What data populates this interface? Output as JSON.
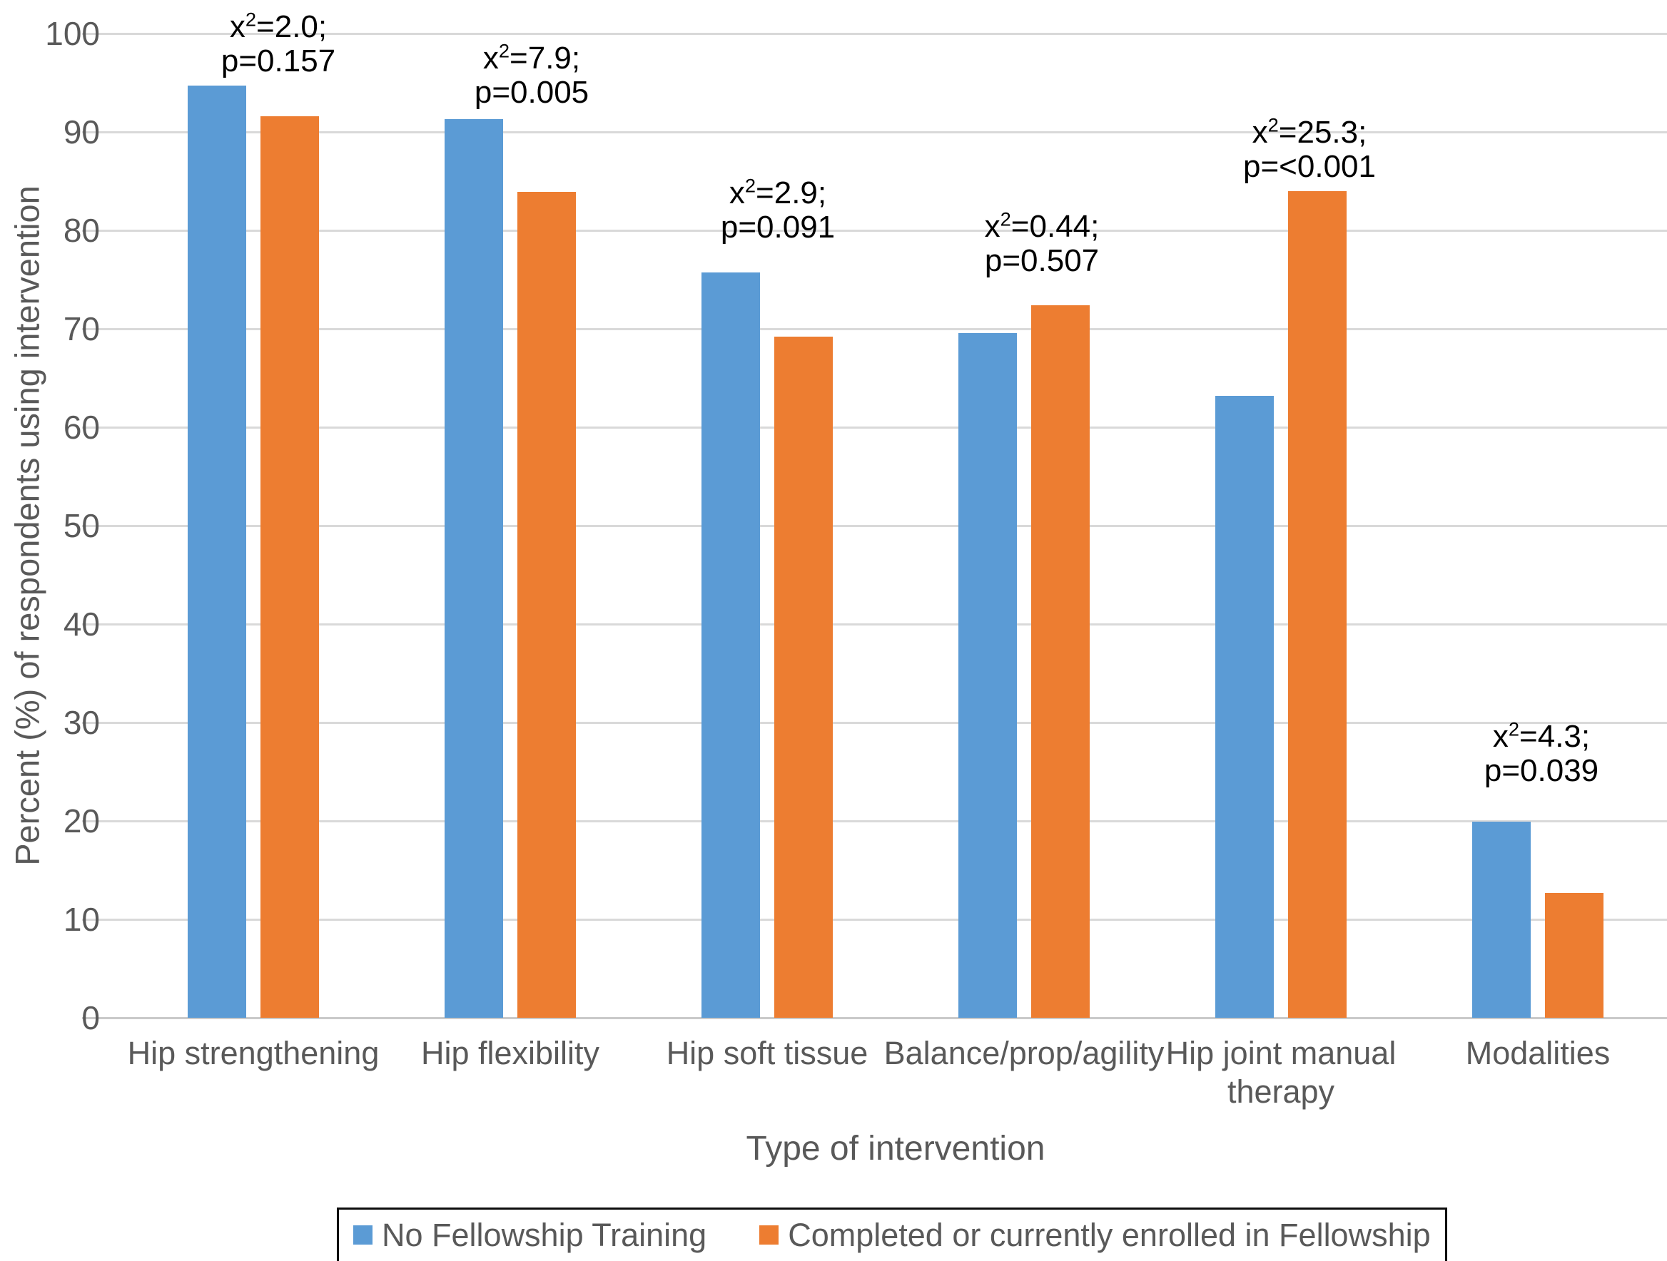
{
  "colors": {
    "grid": "#d9d9d9",
    "axis_line": "#c9c9c9",
    "axis_text": "#595959",
    "annotation_text": "#000000",
    "legend_border": "#0d0d0d",
    "series_blue": "#5B9BD5",
    "series_orange": "#ED7D31"
  },
  "chart_data": {
    "type": "bar",
    "title": "",
    "xlabel": "Type of intervention",
    "ylabel": "Percent (%) of respondents using intervention",
    "ylim": [
      0,
      100
    ],
    "ytick_step": 10,
    "yticks": [
      "0",
      "10",
      "20",
      "30",
      "40",
      "50",
      "60",
      "70",
      "80",
      "90",
      "100"
    ],
    "grid": true,
    "legend_position": "bottom",
    "categories": [
      {
        "label": "Hip strengthening",
        "lines": [
          "Hip strengthening"
        ]
      },
      {
        "label": "Hip flexibility",
        "lines": [
          "Hip flexibility"
        ]
      },
      {
        "label": "Hip soft tissue",
        "lines": [
          "Hip soft tissue"
        ]
      },
      {
        "label": "Balance/prop/agility",
        "lines": [
          "Balance/prop/agility"
        ]
      },
      {
        "label": "Hip joint manual therapy",
        "lines": [
          "Hip joint manual",
          "therapy"
        ]
      },
      {
        "label": "Modalities",
        "lines": [
          "Modalities"
        ]
      }
    ],
    "series": [
      {
        "name": "No Fellowship Training",
        "color": "#5B9BD5",
        "values": [
          94.7,
          91.3,
          75.7,
          69.6,
          63.2,
          19.9
        ]
      },
      {
        "name": "Completed or currently enrolled in Fellowship",
        "color": "#ED7D31",
        "values": [
          91.6,
          83.9,
          69.2,
          72.4,
          84.0,
          12.7
        ]
      }
    ],
    "annotations": [
      {
        "chi_sq": "2.0",
        "p_value": "0.157"
      },
      {
        "chi_sq": "7.9",
        "p_value": "0.005"
      },
      {
        "chi_sq": "2.9",
        "p_value": "0.091"
      },
      {
        "chi_sq": "0.44",
        "p_value": "0.507"
      },
      {
        "chi_sq": "25.3",
        "p_value": "<0.001"
      },
      {
        "chi_sq": "4.3",
        "p_value": "0.039"
      }
    ]
  }
}
